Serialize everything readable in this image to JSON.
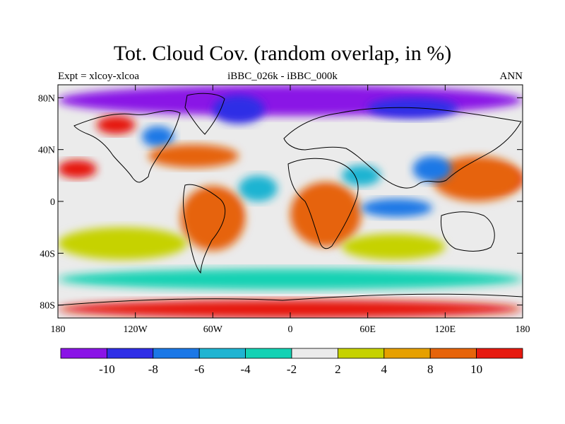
{
  "title": "Tot. Cloud Cov. (random overlap, in %)",
  "subtitle_left": "Expt = xlcoy-xlcoa",
  "subtitle_center": "iBBC_026k - iBBC_000k",
  "subtitle_right": "ANN",
  "map": {
    "lon_range": [
      -180,
      180
    ],
    "lat_range": [
      -90,
      90
    ],
    "x_ticks": [
      {
        "value": -180,
        "label": "180"
      },
      {
        "value": -120,
        "label": "120W"
      },
      {
        "value": -60,
        "label": "60W"
      },
      {
        "value": 0,
        "label": "0"
      },
      {
        "value": 60,
        "label": "60E"
      },
      {
        "value": 120,
        "label": "120E"
      },
      {
        "value": 180,
        "label": "180"
      }
    ],
    "y_ticks": [
      {
        "value": 80,
        "label": "80N"
      },
      {
        "value": 40,
        "label": "40N"
      },
      {
        "value": 0,
        "label": "0"
      },
      {
        "value": -40,
        "label": "40S"
      },
      {
        "value": -80,
        "label": "80S"
      }
    ],
    "background_color": "#ebebeb",
    "regions": [
      {
        "name": "arctic-decrease",
        "level": "-12",
        "color": "#8a14e6",
        "lon": [
          -180,
          180
        ],
        "lat": [
          66,
          90
        ]
      },
      {
        "name": "greenland-decrease",
        "level": "-10",
        "color": "#2f2ee6",
        "lon": [
          -60,
          -20
        ],
        "lat": [
          60,
          82
        ]
      },
      {
        "name": "siberia-decrease",
        "level": "-10",
        "color": "#2f2ee6",
        "lon": [
          60,
          130
        ],
        "lat": [
          64,
          80
        ]
      },
      {
        "name": "north-pacific-increase",
        "level": "10",
        "color": "#e6190f",
        "lon": [
          -150,
          -120
        ],
        "lat": [
          52,
          66
        ]
      },
      {
        "name": "north-america-decrease",
        "level": "-8",
        "color": "#1b78e6",
        "lon": [
          -115,
          -90
        ],
        "lat": [
          42,
          58
        ]
      },
      {
        "name": "north-atlantic-increase",
        "level": "8",
        "color": "#e6640a",
        "lon": [
          -110,
          -40
        ],
        "lat": [
          26,
          44
        ]
      },
      {
        "name": "east-pacific-increase",
        "level": "10",
        "color": "#e6190f",
        "lon": [
          -180,
          -150
        ],
        "lat": [
          18,
          32
        ]
      },
      {
        "name": "tropical-atlantic-decrease",
        "level": "-4",
        "color": "#1fb4d2",
        "lon": [
          -40,
          -10
        ],
        "lat": [
          0,
          20
        ]
      },
      {
        "name": "south-america-increase",
        "level": "10",
        "color": "#e6190f",
        "lon": [
          -75,
          -40
        ],
        "lat": [
          -25,
          5
        ]
      },
      {
        "name": "africa-increase",
        "level": "10",
        "color": "#e6190f",
        "lon": [
          10,
          45
        ],
        "lat": [
          -25,
          8
        ]
      },
      {
        "name": "south-america-orange",
        "level": "8",
        "color": "#e6640a",
        "lon": [
          -85,
          -35
        ],
        "lat": [
          -38,
          12
        ]
      },
      {
        "name": "africa-orange",
        "level": "8",
        "color": "#e6640a",
        "lon": [
          0,
          55
        ],
        "lat": [
          -35,
          15
        ]
      },
      {
        "name": "arabia-decrease",
        "level": "-6",
        "color": "#1fb4d2",
        "lon": [
          40,
          70
        ],
        "lat": [
          12,
          28
        ]
      },
      {
        "name": "indian-ocean-decrease",
        "level": "-8",
        "color": "#1b78e6",
        "lon": [
          55,
          110
        ],
        "lat": [
          -12,
          2
        ]
      },
      {
        "name": "west-pacific-increase",
        "level": "10",
        "color": "#e6190f",
        "lon": [
          125,
          180
        ],
        "lat": [
          8,
          26
        ]
      },
      {
        "name": "west-pacific-orange",
        "level": "8",
        "color": "#e6640a",
        "lon": [
          110,
          180
        ],
        "lat": [
          0,
          35
        ]
      },
      {
        "name": "east-asia-decrease",
        "level": "-8",
        "color": "#1b78e6",
        "lon": [
          95,
          125
        ],
        "lat": [
          15,
          35
        ]
      },
      {
        "name": "south-pacific-yellow",
        "level": "4",
        "color": "#c6d200",
        "lon": [
          -180,
          -80
        ],
        "lat": [
          -45,
          -20
        ]
      },
      {
        "name": "south-indian-yellow",
        "level": "4",
        "color": "#c6d200",
        "lon": [
          40,
          120
        ],
        "lat": [
          -45,
          -25
        ]
      },
      {
        "name": "southern-ocean-cyan",
        "level": "-4",
        "color": "#14d2b4",
        "lon": [
          -180,
          180
        ],
        "lat": [
          -68,
          -52
        ]
      },
      {
        "name": "antarctic-increase",
        "level": "10",
        "color": "#e6190f",
        "lon": [
          -180,
          180
        ],
        "lat": [
          -90,
          -76
        ]
      }
    ]
  },
  "colorbar": {
    "colors": [
      "#8a14e6",
      "#2f2ee6",
      "#1b78e6",
      "#1fb4d2",
      "#14d2b4",
      "#ebebeb",
      "#c6d200",
      "#e6a000",
      "#e6640a",
      "#e6190f"
    ],
    "labels": [
      {
        "boundary": 1,
        "text": "-10"
      },
      {
        "boundary": 2,
        "text": "-8"
      },
      {
        "boundary": 3,
        "text": "-6"
      },
      {
        "boundary": 4,
        "text": "-4"
      },
      {
        "boundary": 5,
        "text": "-2"
      },
      {
        "boundary": 6,
        "text": "2"
      },
      {
        "boundary": 7,
        "text": "4"
      },
      {
        "boundary": 8,
        "text": "8"
      },
      {
        "boundary": 9,
        "text": "10"
      }
    ]
  }
}
